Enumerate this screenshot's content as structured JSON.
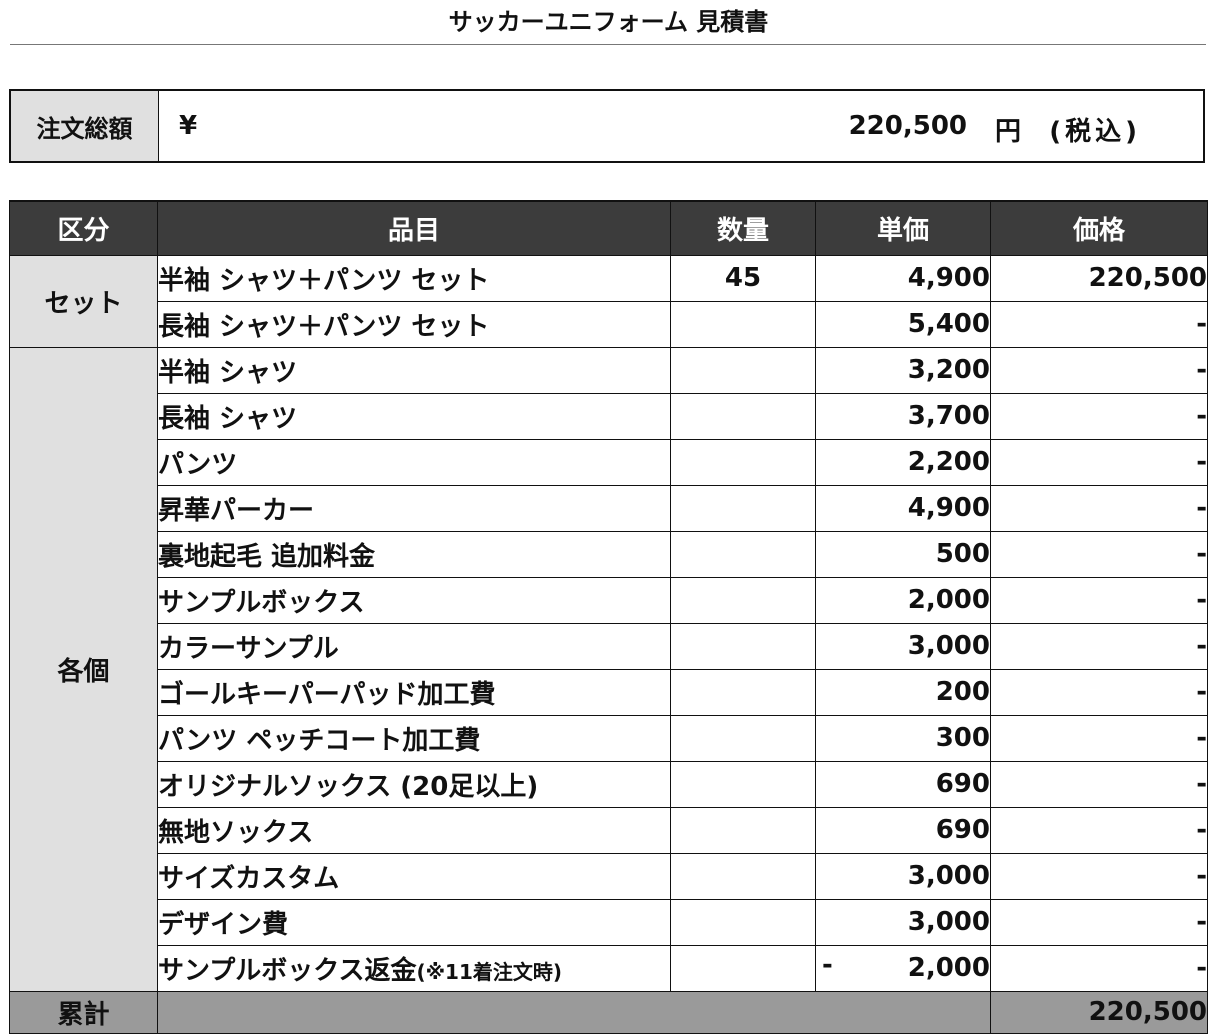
{
  "title": "サッカーユニフォーム 見積書",
  "total": {
    "label": "注文総額",
    "yen": "¥",
    "amount": "220,500",
    "unit": "円",
    "tax": "(税込)"
  },
  "headers": [
    "区分",
    "品目",
    "数量",
    "単価",
    "価格"
  ],
  "groups": [
    {
      "category": "セット",
      "rows": [
        {
          "item": "半袖 シャツ＋パンツ セット",
          "qty": "45",
          "unit_price": "4,900",
          "price": "220,500"
        },
        {
          "item": "長袖 シャツ＋パンツ セット",
          "qty": "",
          "unit_price": "5,400",
          "price": "-"
        }
      ]
    },
    {
      "category": "各個",
      "rows": [
        {
          "item": "半袖 シャツ",
          "qty": "",
          "unit_price": "3,200",
          "price": "-"
        },
        {
          "item": "長袖 シャツ",
          "qty": "",
          "unit_price": "3,700",
          "price": "-"
        },
        {
          "item": "パンツ",
          "qty": "",
          "unit_price": "2,200",
          "price": "-"
        },
        {
          "item": "昇華パーカー",
          "qty": "",
          "unit_price": "4,900",
          "price": "-"
        },
        {
          "item": "裏地起毛 追加料金",
          "qty": "",
          "unit_price": "500",
          "price": "-"
        },
        {
          "item": "サンプルボックス",
          "qty": "",
          "unit_price": "2,000",
          "price": "-"
        },
        {
          "item": "カラーサンプル",
          "qty": "",
          "unit_price": "3,000",
          "price": "-"
        },
        {
          "item": "ゴールキーパーパッド加工費",
          "qty": "",
          "unit_price": "200",
          "price": "-"
        },
        {
          "item": "パンツ ペッチコート加工費",
          "qty": "",
          "unit_price": "300",
          "price": "-"
        },
        {
          "item": "オリジナルソックス (20足以上)",
          "qty": "",
          "unit_price": "690",
          "price": "-"
        },
        {
          "item": "無地ソックス",
          "qty": "",
          "unit_price": "690",
          "price": "-"
        },
        {
          "item": "サイズカスタム",
          "qty": "",
          "unit_price": "3,000",
          "price": "-"
        },
        {
          "item": "デザイン費",
          "qty": "",
          "unit_price": "3,000",
          "price": "-"
        },
        {
          "item": "サンプルボックス返金",
          "item_note": "(※11着注文時)",
          "qty": "",
          "unit_price_sign": "-",
          "unit_price": "2,000",
          "price": "-"
        }
      ]
    }
  ],
  "sum": {
    "label": "累計",
    "price": "220,500"
  }
}
